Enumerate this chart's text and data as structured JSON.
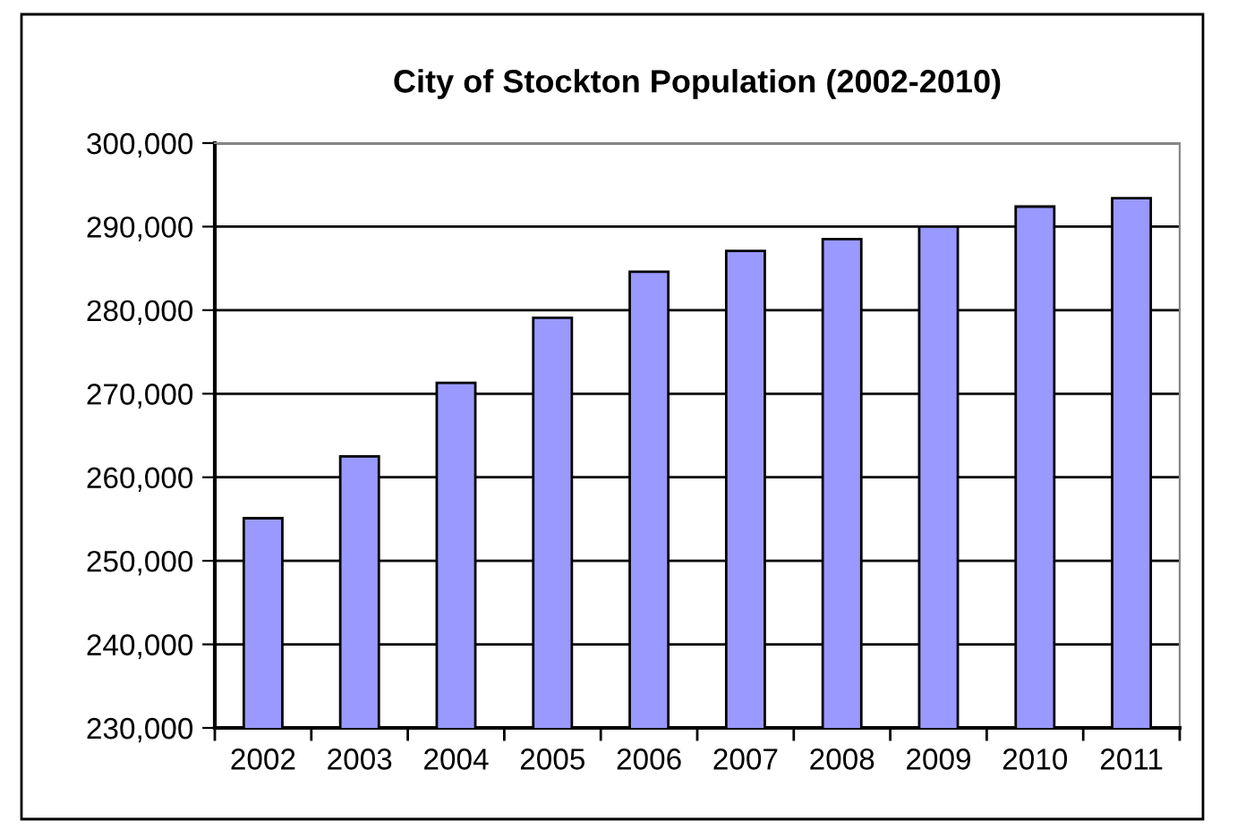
{
  "chart_data": {
    "type": "bar",
    "title": "City of Stockton Population (2002-2010)",
    "categories": [
      "2002",
      "2003",
      "2004",
      "2005",
      "2006",
      "2007",
      "2008",
      "2009",
      "2010",
      "2011"
    ],
    "values": [
      255100,
      262500,
      271300,
      279100,
      284600,
      287100,
      288500,
      290000,
      292400,
      293400
    ],
    "color": "#9999ff",
    "ylim": [
      230000,
      300000
    ],
    "yticks": [
      {
        "value": 230000,
        "label": "230,000"
      },
      {
        "value": 240000,
        "label": "240,000"
      },
      {
        "value": 250000,
        "label": "250,000"
      },
      {
        "value": 260000,
        "label": "260,000"
      },
      {
        "value": 270000,
        "label": "270,000"
      },
      {
        "value": 280000,
        "label": "280,000"
      },
      {
        "value": 290000,
        "label": "290,000"
      },
      {
        "value": 300000,
        "label": "300,000"
      }
    ],
    "grid": "y",
    "legend": false
  }
}
